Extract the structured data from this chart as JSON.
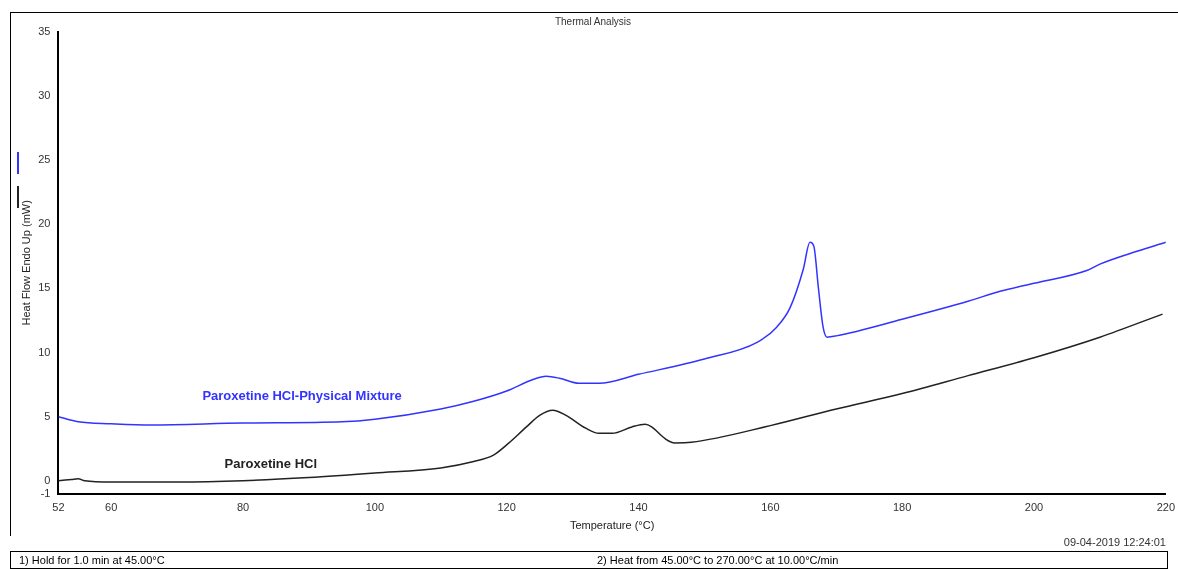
{
  "chart_data": {
    "type": "line",
    "title": "Thermal Analysis",
    "xlabel": "Temperature (°C)",
    "ylabel": "Heat Flow Endo Up (mW)",
    "xlim": [
      52,
      220
    ],
    "xticks": [
      52,
      60,
      80,
      100,
      120,
      140,
      160,
      180,
      200,
      220
    ],
    "ylim": [
      -1,
      35
    ],
    "yticks": [
      -1,
      0,
      5,
      10,
      15,
      20,
      25,
      30,
      35
    ],
    "grid": false,
    "legend": false,
    "marker": "none",
    "line_style": "solid",
    "series": [
      {
        "name": "Paroxetine HCl-Physical Mixture",
        "color": "#3333ff",
        "x": [
          52,
          55,
          60,
          66,
          80,
          95,
          100,
          110,
          115,
          120,
          124,
          126,
          128,
          131,
          134,
          140,
          150,
          158,
          161,
          163,
          165,
          166,
          166.6,
          167.3,
          168,
          168.6,
          170,
          180,
          190,
          195,
          200,
          208,
          210,
          215,
          220
        ],
        "values": [
          5.0,
          4.6,
          4.45,
          4.35,
          4.5,
          4.6,
          4.8,
          5.6,
          6.2,
          7.0,
          7.9,
          8.15,
          8.0,
          7.6,
          7.6,
          8.3,
          9.5,
          10.8,
          12,
          13.5,
          16.5,
          18.6,
          18.3,
          15,
          12,
          11.2,
          11.3,
          12.6,
          14.0,
          14.8,
          15.4,
          16.4,
          16.9,
          17.8,
          18.6
        ]
      },
      {
        "name": "Paroxetine HCl",
        "color": "#222222",
        "x": [
          52,
          54,
          55,
          56,
          60,
          70,
          80,
          90,
          100,
          110,
          115,
          118,
          120,
          123,
          125,
          127,
          129,
          132,
          134,
          136,
          139,
          141,
          142,
          144,
          145.5,
          148,
          160,
          170,
          180,
          190,
          200,
          210,
          219.5
        ],
        "values": [
          0,
          0.1,
          0.15,
          0,
          -0.1,
          -0.1,
          0,
          0.25,
          0.6,
          1.0,
          1.5,
          2.0,
          2.8,
          4.2,
          5.1,
          5.5,
          5.1,
          4.1,
          3.7,
          3.7,
          4.2,
          4.4,
          4.2,
          3.3,
          2.95,
          3.0,
          4.3,
          5.6,
          6.8,
          8.2,
          9.6,
          11.2,
          13.0
        ]
      }
    ],
    "annotations": [
      "09-04-2019 12:24:01",
      "1)  Hold for 1.0 min at 45.00°C",
      "2)    Heat from 45.00°C to 270.00°C at 10.00°C/min"
    ]
  }
}
